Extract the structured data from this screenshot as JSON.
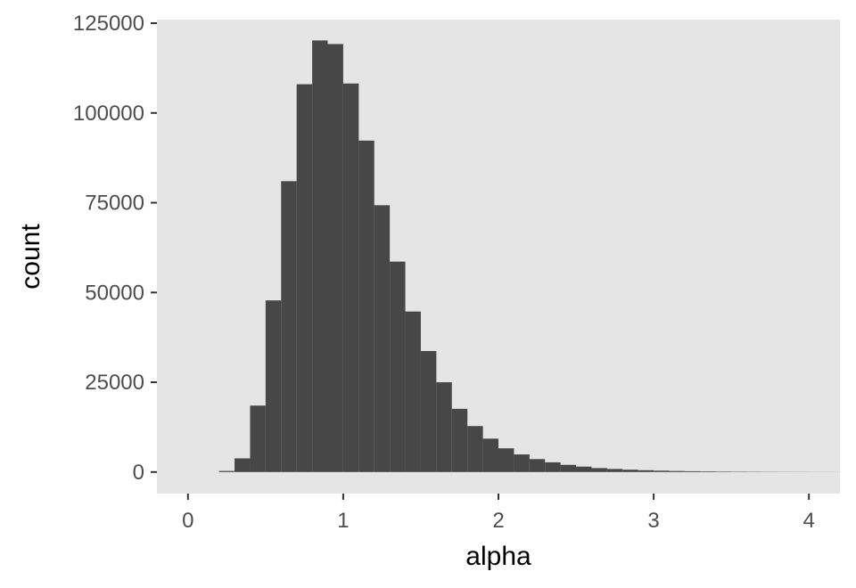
{
  "chart_data": {
    "type": "bar",
    "title": "",
    "xlabel": "alpha",
    "ylabel": "count",
    "xlim": [
      -0.2,
      4.2
    ],
    "ylim": [
      -6000,
      126000
    ],
    "x_ticks": [
      0,
      1,
      2,
      3,
      4
    ],
    "y_ticks": [
      0,
      25000,
      50000,
      75000,
      100000,
      125000
    ],
    "grid": false,
    "legend": "none",
    "colors": {
      "panel": "#e5e5e5",
      "bar": "#474747",
      "tick": "#333333"
    },
    "bin_width": 0.1,
    "x": [
      0.25,
      0.35,
      0.45,
      0.55,
      0.65,
      0.75,
      0.85,
      0.95,
      1.05,
      1.15,
      1.25,
      1.35,
      1.45,
      1.55,
      1.65,
      1.75,
      1.85,
      1.95,
      2.05,
      2.15,
      2.25,
      2.35,
      2.45,
      2.55,
      2.65,
      2.75,
      2.85,
      2.95,
      3.05,
      3.15,
      3.25,
      3.35,
      3.45,
      3.55,
      3.65,
      3.75,
      3.85,
      3.95,
      4.05,
      4.15
    ],
    "values": [
      300,
      3800,
      18500,
      47800,
      81000,
      108000,
      120200,
      119200,
      108200,
      92300,
      74300,
      58600,
      44700,
      33700,
      25000,
      17600,
      12800,
      9300,
      6600,
      4900,
      3600,
      2700,
      2000,
      1500,
      1100,
      850,
      650,
      500,
      380,
      290,
      220,
      170,
      130,
      100,
      80,
      60,
      45,
      35,
      25,
      20
    ]
  }
}
